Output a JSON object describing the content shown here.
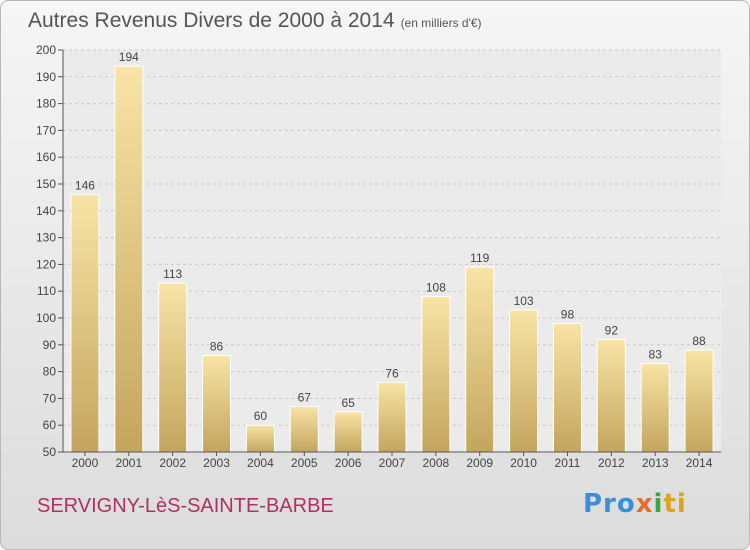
{
  "chart_data": {
    "type": "bar",
    "title": "Autres Revenus Divers de 2000 à 2014",
    "subtitle": "(en milliers d'€)",
    "categories": [
      "2000",
      "2001",
      "2002",
      "2003",
      "2004",
      "2005",
      "2006",
      "2007",
      "2008",
      "2009",
      "2010",
      "2011",
      "2012",
      "2013",
      "2014"
    ],
    "values": [
      146,
      194,
      113,
      86,
      60,
      67,
      65,
      76,
      108,
      119,
      103,
      98,
      92,
      83,
      88
    ],
    "ylim": [
      50,
      200
    ],
    "yticks": [
      50,
      60,
      70,
      80,
      90,
      100,
      110,
      120,
      130,
      140,
      150,
      160,
      170,
      180,
      190,
      200
    ],
    "grid": true,
    "colors": {
      "bar_light": "#f7e0a0",
      "bar_dark": "#c8a860",
      "text": "#444444"
    }
  },
  "commune": "SERVIGNY-LèS-SAINTE-BARBE",
  "logo": {
    "part1": "Pro",
    "part2": "x",
    "part3": "i",
    "part4": "ti"
  }
}
